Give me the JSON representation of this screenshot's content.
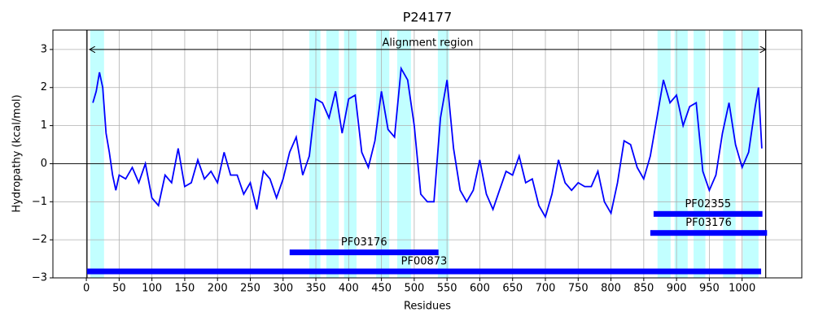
{
  "chart_data": {
    "type": "line",
    "title": "P24177",
    "xlabel": "Residues",
    "ylabel": "Hydropathy (kcal/mol)",
    "x": [
      10,
      15,
      20,
      25,
      30,
      35,
      40,
      45,
      50,
      60,
      70,
      80,
      90,
      100,
      110,
      120,
      130,
      140,
      150,
      160,
      170,
      180,
      190,
      200,
      210,
      220,
      230,
      240,
      250,
      260,
      270,
      280,
      290,
      300,
      310,
      320,
      330,
      340,
      350,
      360,
      370,
      380,
      390,
      400,
      410,
      420,
      430,
      440,
      450,
      460,
      470,
      480,
      490,
      500,
      510,
      520,
      530,
      540,
      550,
      560,
      570,
      580,
      590,
      600,
      610,
      620,
      630,
      640,
      650,
      660,
      670,
      680,
      690,
      700,
      710,
      720,
      730,
      740,
      750,
      760,
      770,
      780,
      790,
      800,
      810,
      820,
      830,
      840,
      850,
      860,
      870,
      880,
      890,
      900,
      910,
      920,
      930,
      940,
      950,
      960,
      970,
      980,
      990,
      1000,
      1010,
      1020,
      1025,
      1030
    ],
    "series": [
      {
        "name": "Hydropathy",
        "color": "#0000ff",
        "values": [
          1.6,
          1.9,
          2.4,
          2.0,
          0.8,
          0.3,
          -0.3,
          -0.7,
          -0.3,
          -0.4,
          -0.1,
          -0.5,
          0,
          -0.9,
          -1.1,
          -0.3,
          -0.5,
          0.4,
          -0.6,
          -0.5,
          0.1,
          -0.4,
          -0.2,
          -0.5,
          0.3,
          -0.3,
          -0.3,
          -0.8,
          -0.5,
          -1.2,
          -0.2,
          -0.4,
          -0.9,
          -0.4,
          0.3,
          0.7,
          -0.3,
          0.2,
          1.7,
          1.6,
          1.2,
          1.9,
          0.8,
          1.7,
          1.8,
          0.3,
          -0.1,
          0.6,
          1.9,
          0.9,
          0.7,
          2.5,
          2.2,
          1.0,
          -0.8,
          -1.0,
          -1.0,
          1.2,
          2.2,
          0.4,
          -0.7,
          -1.0,
          -0.7,
          0.1,
          -0.8,
          -1.2,
          -0.7,
          -0.2,
          -0.3,
          0.2,
          -0.5,
          -0.4,
          -1.1,
          -1.4,
          -0.8,
          0.1,
          -0.5,
          -0.7,
          -0.5,
          -0.6,
          -0.6,
          -0.2,
          -1.0,
          -1.3,
          -0.5,
          0.6,
          0.5,
          -0.1,
          -0.4,
          0.2,
          1.2,
          2.2,
          1.6,
          1.8,
          1.0,
          1.5,
          1.6,
          -0.2,
          -0.7,
          -0.3,
          0.8,
          1.6,
          0.5,
          -0.1,
          0.3,
          1.5,
          2.0,
          0.4
        ]
      }
    ],
    "spans": [
      [
        6,
        27
      ],
      [
        340,
        357
      ],
      [
        366,
        385
      ],
      [
        393,
        412
      ],
      [
        442,
        462
      ],
      [
        474,
        495
      ],
      [
        536,
        553
      ],
      [
        871,
        891
      ],
      [
        897,
        917
      ],
      [
        926,
        944
      ],
      [
        971,
        990
      ],
      [
        1001,
        1025
      ]
    ],
    "span_color": "#c2ffff",
    "domains": [
      {
        "name": "PF02355",
        "start": 865,
        "end": 1031,
        "y": -1.32
      },
      {
        "name": "PF03176",
        "start": 860,
        "end": 1038,
        "y": -1.82
      },
      {
        "name": "PF03176",
        "start": 310,
        "end": 537,
        "y": -2.33
      },
      {
        "name": "PF00873",
        "start": 1,
        "end": 1029,
        "y": -2.83
      }
    ],
    "domain_color": "#0000ff",
    "annotation": {
      "text": "Alignment region",
      "start": 5,
      "end": 1036,
      "y": 3
    },
    "vlines": [
      1,
      1036
    ],
    "hlines": [
      0
    ],
    "xlim": [
      -51,
      1091
    ],
    "ylim": [
      -3,
      3.51
    ],
    "xticks": [
      0,
      50,
      100,
      150,
      200,
      250,
      300,
      350,
      400,
      450,
      500,
      550,
      600,
      650,
      700,
      750,
      800,
      850,
      900,
      950,
      1000
    ],
    "yticks": [
      {
        "value": -3,
        "label": "−3"
      },
      {
        "value": -2,
        "label": "−2"
      },
      {
        "value": -1,
        "label": "−1"
      },
      0,
      1,
      2,
      3
    ],
    "grid": true
  }
}
